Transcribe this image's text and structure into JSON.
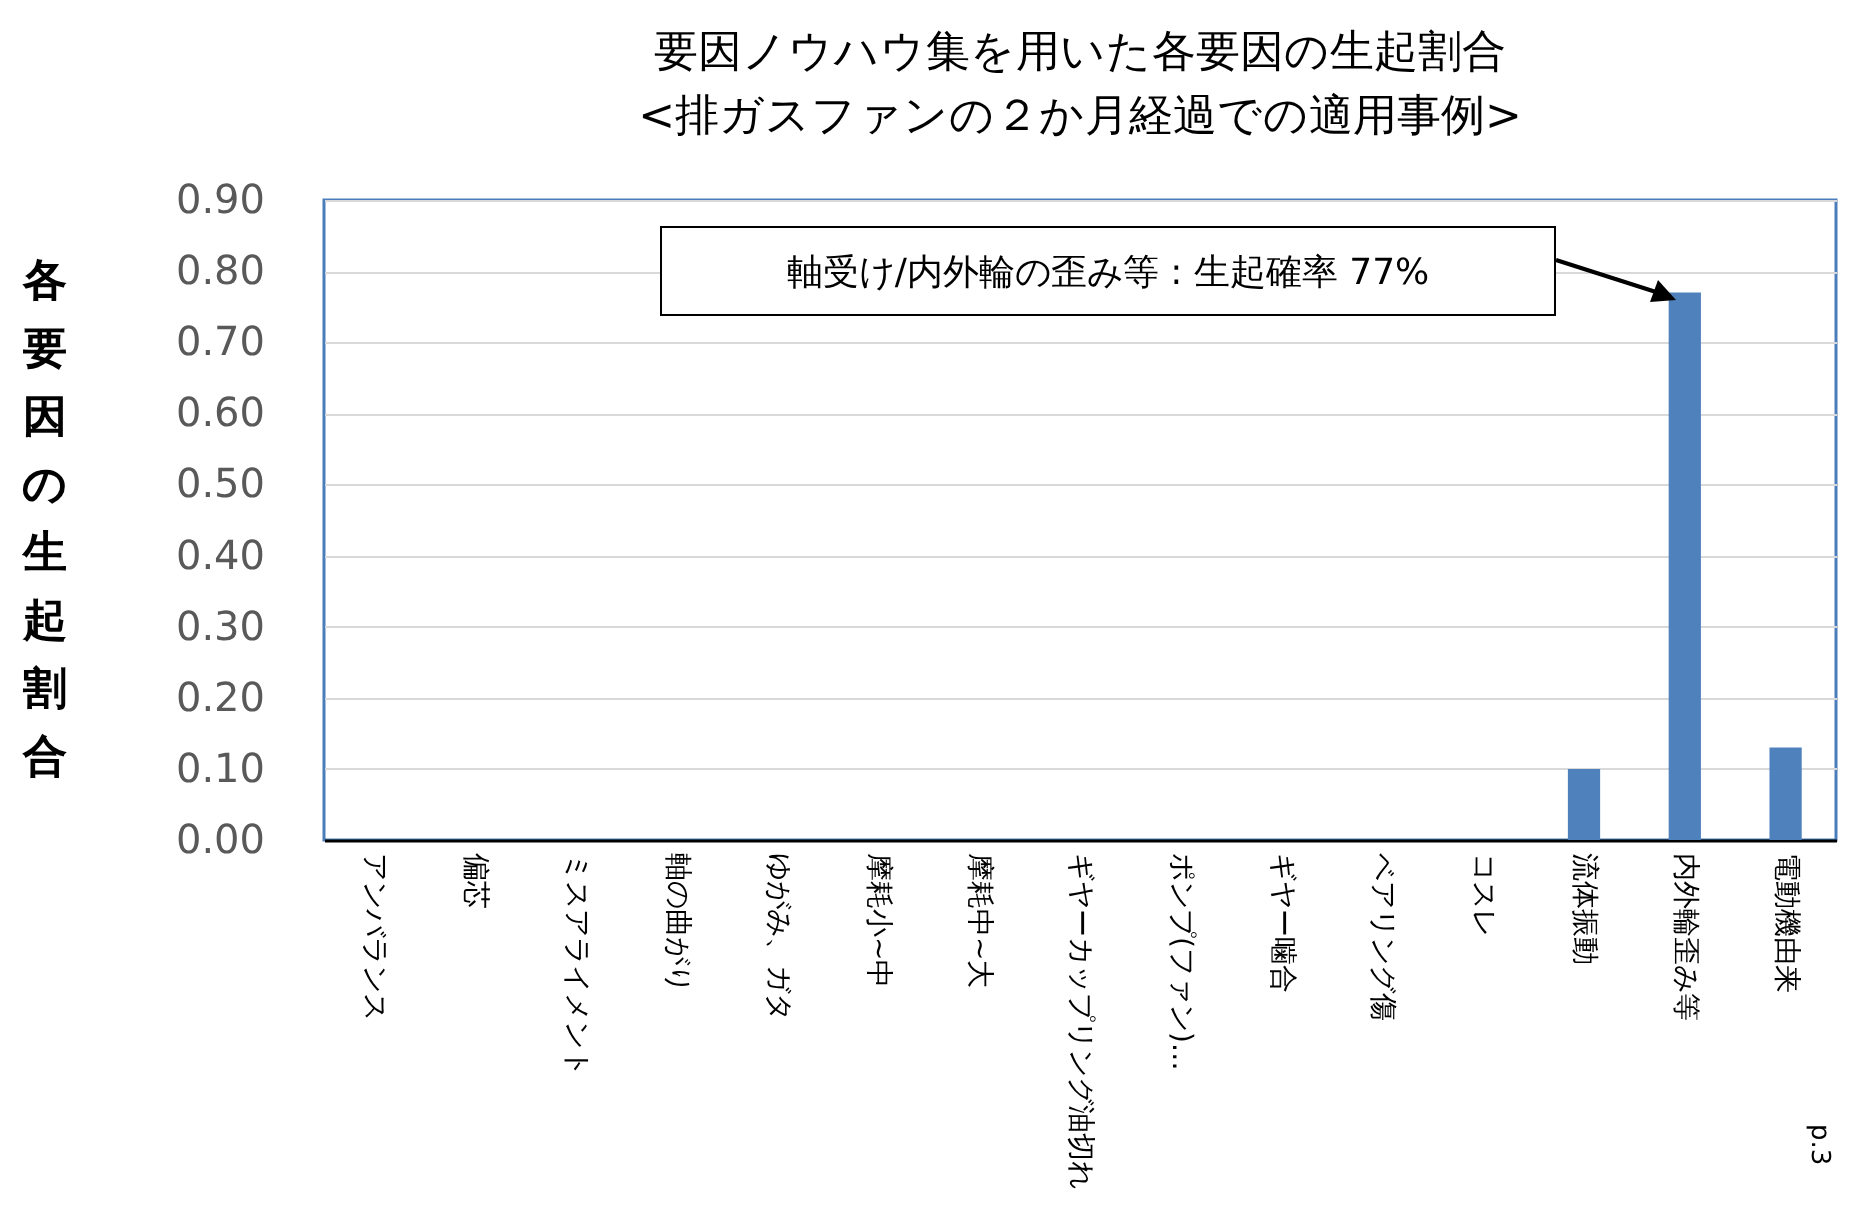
{
  "chart_data": {
    "type": "bar",
    "title": "要因ノウハウ集を用いた各要因の生起割合",
    "subtitle": "<排ガスファンの２か月経過での適用事例>",
    "ylabel": "各要因の生起割合",
    "categories": [
      "アンバランス",
      "偏芯",
      "ミスアライメント",
      "軸の曲がり",
      "ゆがみ、ガタ",
      "摩耗小~中",
      "摩耗中~大",
      "ギヤーカップリング油切れ",
      "ポンプ(ファン)…",
      "ギヤー噛合",
      "ベアリング傷",
      "コスレ",
      "流体振動",
      "内外輪歪み等",
      "電動機由来"
    ],
    "values": [
      0,
      0,
      0,
      0,
      0,
      0,
      0,
      0,
      0,
      0,
      0,
      0,
      0.1,
      0.77,
      0.13
    ],
    "color": "#4f81bd",
    "ylim": [
      0,
      0.9
    ],
    "yticks": [
      {
        "value": 0,
        "label": "0.00"
      },
      {
        "value": 0.1,
        "label": "0.10"
      },
      {
        "value": 0.2,
        "label": "0.20"
      },
      {
        "value": 0.3,
        "label": "0.30"
      },
      {
        "value": 0.4,
        "label": "0.40"
      },
      {
        "value": 0.5,
        "label": "0.50"
      },
      {
        "value": 0.6,
        "label": "0.60"
      },
      {
        "value": 0.7,
        "label": "0.70"
      },
      {
        "value": 0.8,
        "label": "0.80"
      },
      {
        "value": 0.9,
        "label": "0.90"
      }
    ],
    "grid": "y",
    "annotations": [
      "軸受け/内外輪の歪み等 : 生起確率 77%",
      "p.3"
    ]
  }
}
